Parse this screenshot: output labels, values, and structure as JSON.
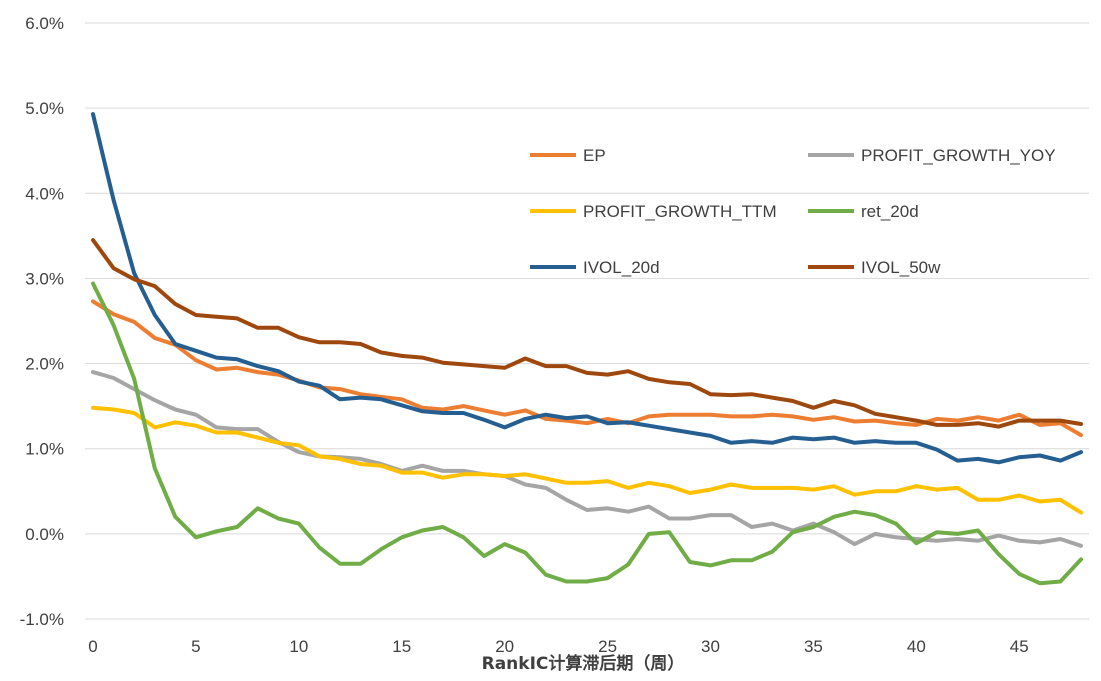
{
  "chart_data": {
    "type": "line",
    "xlabel": "RankIC计算滞后期（周）",
    "ylabel": "",
    "ylim": [
      -0.01,
      0.06
    ],
    "xlim": [
      0,
      48
    ],
    "grid": true,
    "legend_position": "center-right",
    "y_ticks": [
      "-1.0%",
      "0.0%",
      "1.0%",
      "2.0%",
      "3.0%",
      "4.0%",
      "5.0%",
      "6.0%"
    ],
    "x_ticks": [
      "0",
      "5",
      "10",
      "15",
      "20",
      "25",
      "30",
      "35",
      "40",
      "45"
    ],
    "x": [
      0,
      1,
      2,
      3,
      4,
      5,
      6,
      7,
      8,
      9,
      10,
      11,
      12,
      13,
      14,
      15,
      16,
      17,
      18,
      19,
      20,
      21,
      22,
      23,
      24,
      25,
      26,
      27,
      28,
      29,
      30,
      31,
      32,
      33,
      34,
      35,
      36,
      37,
      38,
      39,
      40,
      41,
      42,
      43,
      44,
      45,
      46,
      47,
      48
    ],
    "series": [
      {
        "name": "EP",
        "color": "#ED7D31",
        "values": [
          0.0273,
          0.0258,
          0.0249,
          0.023,
          0.0222,
          0.0204,
          0.0193,
          0.0195,
          0.019,
          0.0187,
          0.018,
          0.0172,
          0.017,
          0.0164,
          0.0161,
          0.0158,
          0.0148,
          0.0146,
          0.015,
          0.0145,
          0.014,
          0.0145,
          0.0135,
          0.0133,
          0.013,
          0.0135,
          0.013,
          0.0138,
          0.014,
          0.014,
          0.014,
          0.0138,
          0.0138,
          0.014,
          0.0138,
          0.0134,
          0.0137,
          0.0132,
          0.0133,
          0.013,
          0.0128,
          0.0135,
          0.0133,
          0.0137,
          0.0133,
          0.014,
          0.0128,
          0.013,
          0.0116
        ]
      },
      {
        "name": "PROFIT_GROWTH_YOY",
        "color": "#A5A5A5",
        "values": [
          0.019,
          0.0183,
          0.017,
          0.0157,
          0.0146,
          0.014,
          0.0125,
          0.0123,
          0.0123,
          0.0108,
          0.0096,
          0.0091,
          0.009,
          0.0088,
          0.0082,
          0.0074,
          0.008,
          0.0074,
          0.0074,
          0.007,
          0.0068,
          0.0058,
          0.0054,
          0.004,
          0.0028,
          0.003,
          0.0026,
          0.0032,
          0.0018,
          0.0018,
          0.0022,
          0.0022,
          0.0008,
          0.0012,
          0.0004,
          0.0012,
          0.0002,
          -0.0012,
          0.0,
          -0.0004,
          -0.0006,
          -0.0008,
          -0.0006,
          -0.0008,
          -0.0002,
          -0.0008,
          -0.001,
          -0.0006,
          -0.0014
        ]
      },
      {
        "name": "PROFIT_GROWTH_TTM",
        "color": "#FFC000",
        "values": [
          0.0148,
          0.0146,
          0.0142,
          0.0125,
          0.0131,
          0.0127,
          0.0119,
          0.0119,
          0.0113,
          0.0107,
          0.0104,
          0.0091,
          0.0088,
          0.0082,
          0.008,
          0.0072,
          0.0072,
          0.0066,
          0.007,
          0.007,
          0.0068,
          0.007,
          0.0065,
          0.006,
          0.006,
          0.0062,
          0.0054,
          0.006,
          0.0056,
          0.0048,
          0.0052,
          0.0058,
          0.0054,
          0.0054,
          0.0054,
          0.0052,
          0.0056,
          0.0046,
          0.005,
          0.005,
          0.0056,
          0.0052,
          0.0054,
          0.004,
          0.004,
          0.0045,
          0.0038,
          0.004,
          0.0025
        ]
      },
      {
        "name": "ret_20d",
        "color": "#70AD47",
        "values": [
          0.0294,
          0.0245,
          0.0182,
          0.0077,
          0.002,
          -0.0004,
          0.0003,
          0.0008,
          0.003,
          0.0018,
          0.0012,
          -0.0016,
          -0.0035,
          -0.0035,
          -0.0018,
          -0.0004,
          0.0004,
          0.0008,
          -0.0004,
          -0.0026,
          -0.0012,
          -0.0022,
          -0.0048,
          -0.0056,
          -0.0056,
          -0.0052,
          -0.0036,
          0.0,
          0.0002,
          -0.0033,
          -0.0037,
          -0.0031,
          -0.0031,
          -0.0021,
          0.0002,
          0.0008,
          0.002,
          0.0026,
          0.0022,
          0.0012,
          -0.0011,
          0.0002,
          0.0,
          0.0004,
          -0.0024,
          -0.0047,
          -0.0058,
          -0.0056,
          -0.003
        ]
      },
      {
        "name": "IVOL_20d",
        "color": "#255E91",
        "values": [
          0.0493,
          0.0392,
          0.0306,
          0.0257,
          0.0223,
          0.0215,
          0.0207,
          0.0205,
          0.0197,
          0.0191,
          0.0179,
          0.0174,
          0.0158,
          0.016,
          0.0158,
          0.0151,
          0.0144,
          0.0142,
          0.0142,
          0.0134,
          0.0125,
          0.0135,
          0.014,
          0.0136,
          0.0138,
          0.013,
          0.0131,
          0.0127,
          0.0123,
          0.0119,
          0.0115,
          0.0107,
          0.0109,
          0.0107,
          0.0113,
          0.0111,
          0.0113,
          0.0107,
          0.0109,
          0.0107,
          0.0107,
          0.0099,
          0.0086,
          0.0088,
          0.0084,
          0.009,
          0.0092,
          0.0086,
          0.0096
        ]
      },
      {
        "name": "IVOL_50w",
        "color": "#9E480E",
        "values": [
          0.0345,
          0.0312,
          0.0299,
          0.0291,
          0.027,
          0.0257,
          0.0255,
          0.0253,
          0.0242,
          0.0242,
          0.0231,
          0.0225,
          0.0225,
          0.0223,
          0.0213,
          0.0209,
          0.0207,
          0.0201,
          0.0199,
          0.0197,
          0.0195,
          0.0206,
          0.0197,
          0.0197,
          0.0189,
          0.0187,
          0.0191,
          0.0182,
          0.0178,
          0.0176,
          0.0164,
          0.0163,
          0.0164,
          0.016,
          0.0156,
          0.0148,
          0.0156,
          0.0151,
          0.0141,
          0.0137,
          0.0133,
          0.0128,
          0.0128,
          0.013,
          0.0126,
          0.0133,
          0.0133,
          0.0133,
          0.0129
        ]
      }
    ]
  }
}
